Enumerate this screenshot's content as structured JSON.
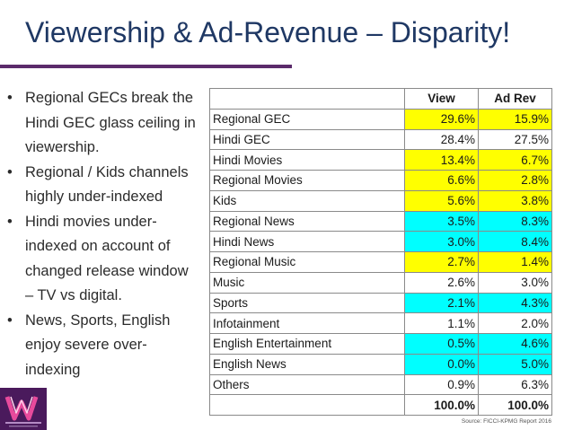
{
  "slide": {
    "title": "Viewership & Ad-Revenue – Disparity!"
  },
  "bullets": [
    "Regional GECs break the Hindi GEC glass ceiling in viewership.",
    "Regional / Kids channels highly under-indexed",
    "Hindi movies under-indexed on account of changed release window – TV vs digital.",
    "News, Sports, English enjoy severe over-indexing"
  ],
  "bullet_glyph": "•",
  "table": {
    "columns": [
      "",
      "View",
      "Ad Rev"
    ],
    "highlight_colors": {
      "yellow": "#ffff00",
      "cyan": "#00ffff"
    },
    "rows": [
      {
        "category": "Regional GEC",
        "view": "29.6%",
        "adrev": "15.9%",
        "highlight": "yellow"
      },
      {
        "category": "Hindi GEC",
        "view": "28.4%",
        "adrev": "27.5%",
        "highlight": "none"
      },
      {
        "category": "Hindi Movies",
        "view": "13.4%",
        "adrev": "6.7%",
        "highlight": "yellow"
      },
      {
        "category": "Regional Movies",
        "view": "6.6%",
        "adrev": "2.8%",
        "highlight": "yellow"
      },
      {
        "category": "Kids",
        "view": "5.6%",
        "adrev": "3.8%",
        "highlight": "yellow"
      },
      {
        "category": "Regional News",
        "view": "3.5%",
        "adrev": "8.3%",
        "highlight": "cyan"
      },
      {
        "category": "Hindi News",
        "view": "3.0%",
        "adrev": "8.4%",
        "highlight": "cyan"
      },
      {
        "category": "Regional Music",
        "view": "2.7%",
        "adrev": "1.4%",
        "highlight": "yellow"
      },
      {
        "category": "Music",
        "view": "2.6%",
        "adrev": "3.0%",
        "highlight": "none"
      },
      {
        "category": "Sports",
        "view": "2.1%",
        "adrev": "4.3%",
        "highlight": "cyan"
      },
      {
        "category": "Infotainment",
        "view": "1.1%",
        "adrev": "2.0%",
        "highlight": "none"
      },
      {
        "category": "English Entertainment",
        "view": "0.5%",
        "adrev": "4.6%",
        "highlight": "cyan"
      },
      {
        "category": "English News",
        "view": "0.0%",
        "adrev": "5.0%",
        "highlight": "cyan"
      },
      {
        "category": "Others",
        "view": "0.9%",
        "adrev": "6.3%",
        "highlight": "none"
      }
    ],
    "total": {
      "category": "",
      "view": "100.0%",
      "adrev": "100.0%"
    }
  },
  "source": "Source: FICCI-KPMG Report 2016",
  "logo": {
    "icon": "w-logo-icon",
    "bg_color": "#4a1a5c",
    "accent_color": "#e84a9c"
  },
  "colors": {
    "title": "#1f3864",
    "rule": "#5b2a6b"
  }
}
